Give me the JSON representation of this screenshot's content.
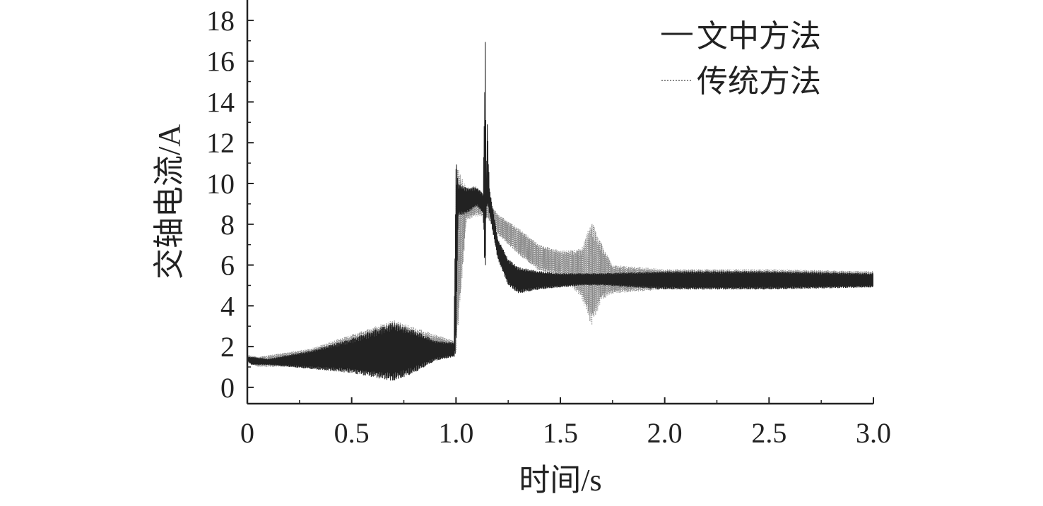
{
  "chart_data": {
    "type": "line",
    "title": "",
    "xlabel": "时间/s",
    "ylabel": "交轴电流/A",
    "xlim": [
      0,
      3.0
    ],
    "ylim": [
      -0.8,
      19
    ],
    "x_ticks": [
      0,
      0.5,
      1.0,
      1.5,
      2.0,
      2.5,
      3.0
    ],
    "x_tick_labels": [
      "0",
      "0.5",
      "1.0",
      "1.5",
      "2.0",
      "2.5",
      "3.0"
    ],
    "y_ticks": [
      0,
      2,
      4,
      6,
      8,
      10,
      12,
      14,
      16,
      18
    ],
    "y_tick_labels": [
      "0",
      "2",
      "4",
      "6",
      "8",
      "10",
      "12",
      "14",
      "16",
      "18"
    ],
    "grid": false,
    "legend_position": "top-right",
    "series": [
      {
        "name": "文中方法",
        "color": "#222222",
        "line_style": "solid",
        "envelope": {
          "x": [
            0.0,
            0.02,
            0.1,
            0.3,
            0.5,
            0.65,
            0.7,
            0.8,
            0.9,
            0.99,
            1.0,
            1.01,
            1.05,
            1.1,
            1.13,
            1.14,
            1.145,
            1.15,
            1.16,
            1.2,
            1.25,
            1.3,
            1.4,
            1.5,
            1.6,
            1.7,
            2.0,
            2.5,
            3.0
          ],
          "upper": [
            1.5,
            1.5,
            1.4,
            1.8,
            2.4,
            3.0,
            3.2,
            2.8,
            2.3,
            2.2,
            11.4,
            10.0,
            9.8,
            9.8,
            9.5,
            17.3,
            9.5,
            12.9,
            9.8,
            7.3,
            6.3,
            5.9,
            5.7,
            5.6,
            5.6,
            5.6,
            5.7,
            5.7,
            5.6
          ],
          "lower": [
            1.3,
            1.1,
            1.1,
            0.9,
            0.7,
            0.4,
            0.3,
            0.7,
            1.3,
            1.5,
            1.5,
            8.4,
            8.5,
            8.9,
            8.5,
            5.0,
            8.8,
            8.8,
            8.5,
            6.3,
            5.0,
            4.6,
            4.8,
            4.9,
            5.0,
            5.0,
            4.8,
            4.8,
            4.9
          ]
        }
      },
      {
        "name": "传统方法",
        "color": "#8a8a8a",
        "line_style": "dotted",
        "envelope": {
          "x": [
            0.0,
            0.05,
            0.3,
            0.5,
            0.7,
            0.9,
            0.99,
            1.0,
            1.05,
            1.1,
            1.15,
            1.2,
            1.3,
            1.4,
            1.5,
            1.6,
            1.65,
            1.7,
            1.75,
            2.0,
            2.5,
            3.0
          ],
          "upper": [
            1.6,
            1.5,
            1.9,
            2.6,
            3.3,
            2.6,
            2.3,
            11.0,
            9.8,
            9.9,
            9.2,
            8.5,
            7.8,
            7.0,
            6.7,
            6.8,
            8.2,
            7.0,
            6.0,
            5.8,
            5.8,
            5.7
          ],
          "lower": [
            1.2,
            1.0,
            1.0,
            0.9,
            0.3,
            1.3,
            1.5,
            1.5,
            8.2,
            8.4,
            8.3,
            7.5,
            6.5,
            5.7,
            5.5,
            4.4,
            3.0,
            4.3,
            4.6,
            4.8,
            4.8,
            4.9
          ]
        }
      }
    ]
  }
}
